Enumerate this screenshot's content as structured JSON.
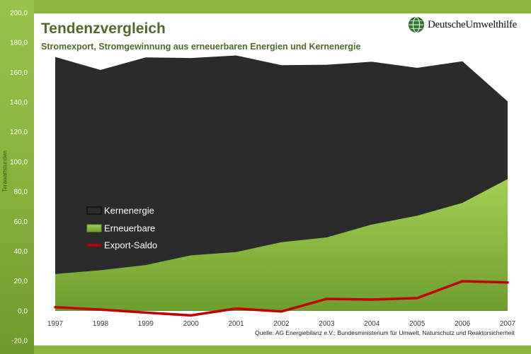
{
  "header": {
    "title": "Tendenzvergleich",
    "subtitle": "Stromexport, Stromgewinnung aus erneuerbaren Energien und Kernenergie",
    "logo_text": "DeutscheUmwelthilfe",
    "logo_icon": "globe-icon"
  },
  "source_text": "Quelle: AG Energiebilanz e.V.; Bundesministerium für Umwelt, Naturschutz und Reaktorsicherheit",
  "colors": {
    "nuclear_fill": "#2b2b2b",
    "renewable_fill_top": "#a3cf52",
    "renewable_fill_bottom": "#6e9e2f",
    "export_line": "#c00000",
    "background": "#8bb53f"
  },
  "chart_data": {
    "type": "area",
    "title": "Tendenzvergleich",
    "subtitle": "Stromexport, Stromgewinnung aus erneuerbaren Energien und Kernenergie",
    "ylabel": "Terawattstunden",
    "xlabel": "",
    "ylim": [
      -20,
      200
    ],
    "yticks": [
      "-20,0",
      "0,0",
      "20,0",
      "40,0",
      "60,0",
      "80,0",
      "100,0",
      "120,0",
      "140,0",
      "160,0",
      "180,0",
      "200,0"
    ],
    "x": [
      "1997",
      "1998",
      "1999",
      "2000",
      "2001",
      "2002",
      "2003",
      "2004",
      "2005",
      "2006",
      "2007"
    ],
    "legend_position": "left-center",
    "series": [
      {
        "name": "Kernenergie",
        "kind": "area",
        "values": [
          170.3,
          161.6,
          170.0,
          169.6,
          171.3,
          164.8,
          165.1,
          167.1,
          163.0,
          167.4,
          140.5
        ]
      },
      {
        "name": "Erneuerbare",
        "kind": "area",
        "values": [
          24.7,
          27.2,
          30.7,
          37.2,
          39.4,
          46.0,
          49.2,
          57.9,
          63.8,
          72.4,
          88.4
        ]
      },
      {
        "name": "Export-Saldo",
        "kind": "line",
        "values": [
          2.4,
          0.8,
          -1.2,
          -3.1,
          1.5,
          -0.5,
          8.0,
          7.5,
          8.5,
          19.8,
          19.0
        ]
      }
    ]
  }
}
